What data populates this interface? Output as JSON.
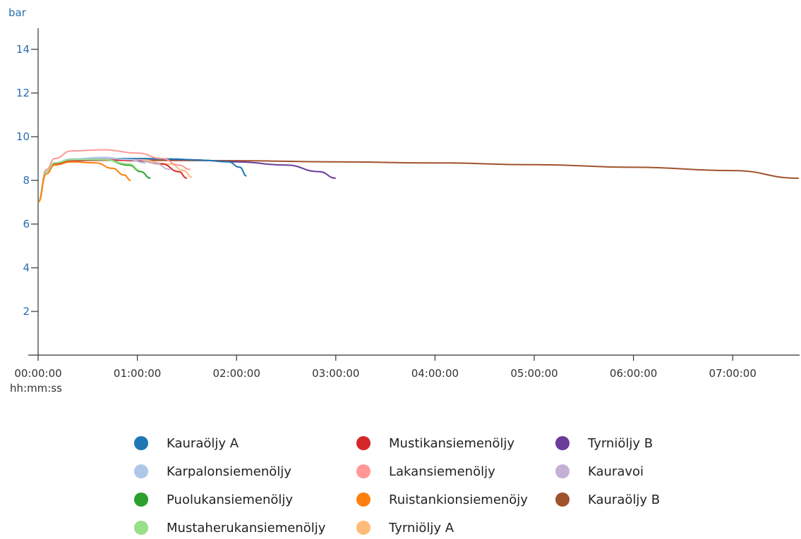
{
  "chart_data": {
    "type": "line",
    "ylabel": "bar",
    "xlabel": "hh:mm:ss",
    "ylim": [
      0,
      15
    ],
    "yticks": [
      2,
      4,
      6,
      8,
      10,
      12,
      14
    ],
    "xlim_minutes": [
      0,
      460
    ],
    "xticks": [
      "00:00:00",
      "01:00:00",
      "02:00:00",
      "03:00:00",
      "04:00:00",
      "05:00:00",
      "06:00:00",
      "07:00:00"
    ],
    "legend_position": "bottom",
    "grid": false,
    "series": [
      {
        "name": "Kauraöljy A",
        "color": "#1f77b4",
        "x": [
          "00:00:00",
          "00:05:00",
          "00:10:00",
          "00:20:00",
          "00:40:00",
          "01:00:00",
          "01:20:00",
          "01:40:00",
          "01:55:00",
          "02:02:00",
          "02:06:00"
        ],
        "y": [
          7.0,
          8.4,
          8.8,
          8.95,
          9.0,
          9.0,
          8.98,
          8.92,
          8.85,
          8.6,
          8.2
        ]
      },
      {
        "name": "Karpalonsiemenöljy",
        "color": "#aec7e8",
        "x": [
          "00:00:00",
          "00:05:00",
          "00:10:00",
          "00:20:00",
          "00:40:00",
          "00:55:00",
          "01:05:00"
        ],
        "y": [
          7.0,
          8.4,
          8.8,
          8.98,
          9.05,
          8.95,
          8.8
        ]
      },
      {
        "name": "Puolukansiemenöljy",
        "color": "#2ca02c",
        "x": [
          "00:00:00",
          "00:05:00",
          "00:10:00",
          "00:20:00",
          "00:40:00",
          "00:55:00",
          "01:02:00",
          "01:08:00"
        ],
        "y": [
          7.0,
          8.4,
          8.8,
          8.95,
          8.95,
          8.7,
          8.4,
          8.1
        ]
      },
      {
        "name": "Mustaherukansiemenöljy",
        "color": "#98df8a",
        "x": [
          "00:00:00",
          "00:05:00",
          "00:10:00",
          "00:20:00",
          "00:40:00",
          "00:55:00",
          "01:02:00"
        ],
        "y": [
          7.0,
          8.4,
          8.8,
          8.95,
          8.95,
          8.75,
          8.45
        ]
      },
      {
        "name": "Mustikansiemenöljy",
        "color": "#d62728",
        "x": [
          "00:00:00",
          "00:05:00",
          "00:10:00",
          "00:20:00",
          "00:40:00",
          "01:00:00",
          "01:15:00",
          "01:25:00",
          "01:30:00"
        ],
        "y": [
          7.0,
          8.4,
          8.75,
          8.9,
          8.95,
          8.9,
          8.75,
          8.4,
          8.1
        ]
      },
      {
        "name": "Lakansiemenöljy",
        "color": "#ff9896",
        "x": [
          "00:00:00",
          "00:05:00",
          "00:10:00",
          "00:20:00",
          "00:40:00",
          "01:00:00",
          "01:15:00",
          "01:25:00",
          "01:32:00"
        ],
        "y": [
          7.0,
          8.5,
          9.0,
          9.35,
          9.4,
          9.25,
          9.0,
          8.7,
          8.5
        ]
      },
      {
        "name": "Ruistankionsiemenöjy",
        "color": "#ff7f0e",
        "x": [
          "00:00:00",
          "00:05:00",
          "00:10:00",
          "00:20:00",
          "00:35:00",
          "00:45:00",
          "00:52:00",
          "00:56:00"
        ],
        "y": [
          7.0,
          8.3,
          8.7,
          8.85,
          8.8,
          8.55,
          8.25,
          8.0
        ]
      },
      {
        "name": "Tyrniöljy A",
        "color": "#ffbb78",
        "x": [
          "00:00:00",
          "00:05:00",
          "00:10:00",
          "00:20:00",
          "00:40:00",
          "01:00:00",
          "01:20:00",
          "01:28:00",
          "01:33:00"
        ],
        "y": [
          7.0,
          8.4,
          8.8,
          8.95,
          9.0,
          8.95,
          8.75,
          8.45,
          8.15
        ]
      },
      {
        "name": "Tyrniöljy B",
        "color": "#6a3d9a",
        "x": [
          "00:00:00",
          "00:05:00",
          "00:10:00",
          "00:20:00",
          "00:40:00",
          "01:00:00",
          "01:30:00",
          "02:00:00",
          "02:30:00",
          "02:50:00",
          "03:00:00"
        ],
        "y": [
          7.0,
          8.4,
          8.8,
          8.95,
          9.0,
          9.0,
          8.95,
          8.85,
          8.7,
          8.4,
          8.1
        ]
      },
      {
        "name": "Kauravoi",
        "color": "#c5b0d5",
        "x": [
          "00:00:00",
          "00:05:00",
          "00:10:00",
          "00:20:00",
          "00:40:00",
          "01:00:00",
          "01:10:00",
          "01:20:00"
        ],
        "y": [
          7.0,
          8.4,
          8.8,
          8.95,
          9.0,
          8.95,
          8.8,
          8.5
        ]
      },
      {
        "name": "Kauraöljy B",
        "color": "#a0522d",
        "x": [
          "00:00:00",
          "00:05:00",
          "00:10:00",
          "00:20:00",
          "00:40:00",
          "01:00:00",
          "02:00:00",
          "03:00:00",
          "04:00:00",
          "05:00:00",
          "06:00:00",
          "07:00:00",
          "07:40:00"
        ],
        "y": [
          7.0,
          8.4,
          8.8,
          8.9,
          8.92,
          8.92,
          8.9,
          8.85,
          8.8,
          8.72,
          8.6,
          8.45,
          8.1
        ]
      }
    ]
  }
}
